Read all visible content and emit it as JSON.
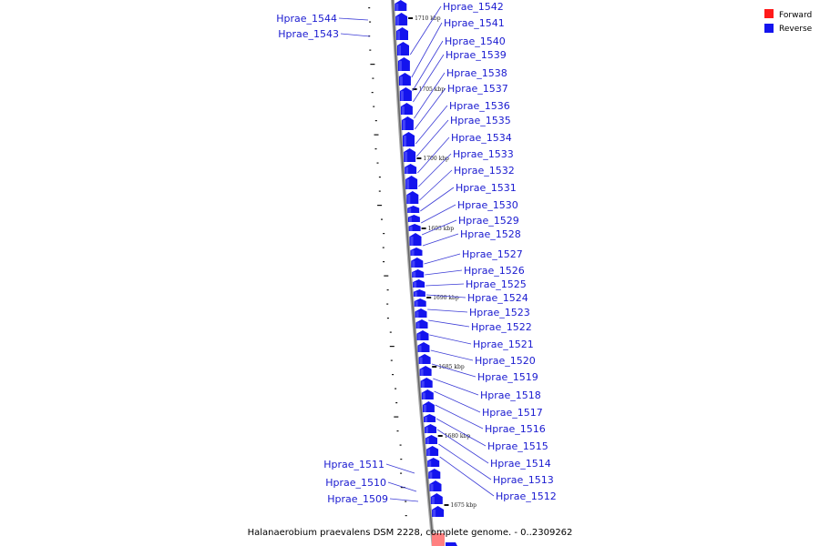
{
  "caption": "Halanaerobium praevalens DSM 2228, complete genome. - 0..2309262",
  "legend": [
    {
      "label": "Forward",
      "color": "#ff1a1a"
    },
    {
      "label": "Reverse",
      "color": "#1414ee"
    }
  ],
  "colors": {
    "reverse_gene": "#1414ee",
    "forward_gene": "#ff8080",
    "backbone": "#888888",
    "label_text": "#1a1ad0",
    "leader": "#3b3bd6"
  },
  "ticks_kbp": [
    "1710 kbp",
    "1705 kbp",
    "1700 kbp",
    "1695 kbp",
    "1690 kbp",
    "1685 kbp",
    "1680 kbp",
    "1675 kbp"
  ],
  "genes_right": [
    "Hprae_1542",
    "Hprae_1541",
    "Hprae_1540",
    "Hprae_1539",
    "Hprae_1538",
    "Hprae_1537",
    "Hprae_1536",
    "Hprae_1535",
    "Hprae_1534",
    "Hprae_1533",
    "Hprae_1532",
    "Hprae_1531",
    "Hprae_1530",
    "Hprae_1529",
    "Hprae_1528",
    "Hprae_1527",
    "Hprae_1526",
    "Hprae_1525",
    "Hprae_1524",
    "Hprae_1523",
    "Hprae_1522",
    "Hprae_1521",
    "Hprae_1520",
    "Hprae_1519",
    "Hprae_1518",
    "Hprae_1517",
    "Hprae_1516",
    "Hprae_1515",
    "Hprae_1514",
    "Hprae_1513",
    "Hprae_1512"
  ],
  "genes_left": [
    "Hprae_1544",
    "Hprae_1543",
    "Hprae_1511",
    "Hprae_1510",
    "Hprae_1509"
  ]
}
